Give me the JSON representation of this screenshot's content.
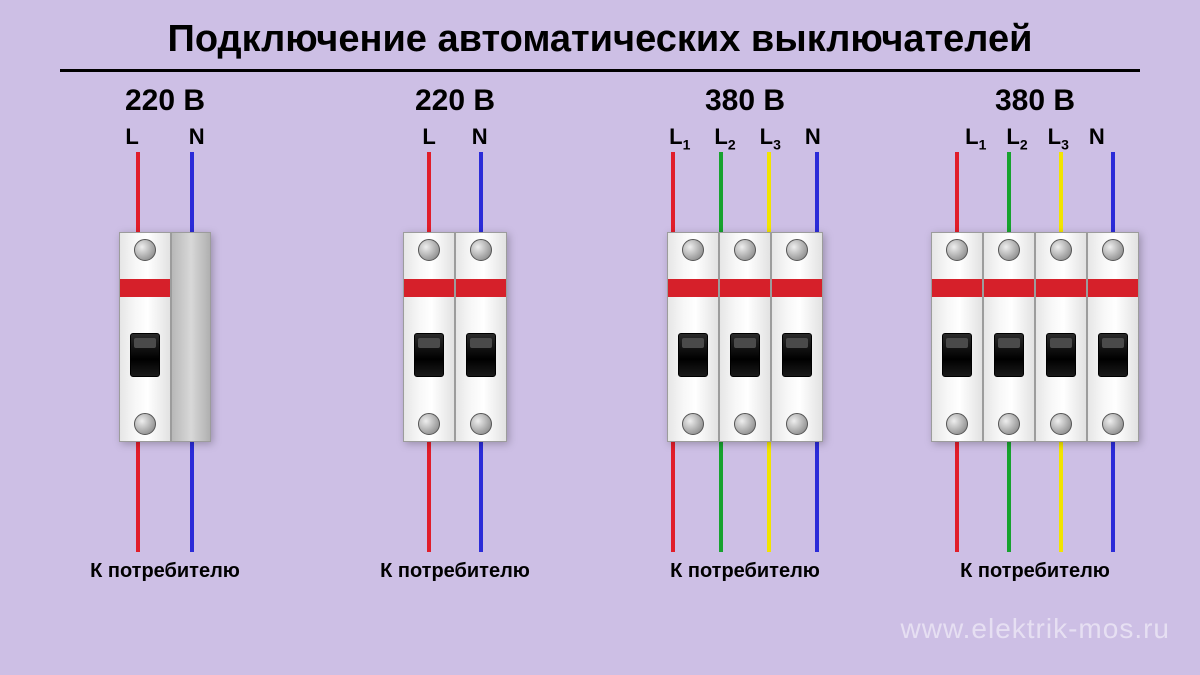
{
  "title": "Подключение автоматических выключателей",
  "watermark": "www.elektrik-mos.ru",
  "background_color": "#cdbfe5",
  "stripe_color": "#d6202a",
  "bottom_label": "К потребителю",
  "wire_colors": {
    "L": "#e11d2a",
    "L1": "#e11d2a",
    "L2": "#17a22e",
    "L3": "#f2e400",
    "N": "#2b2bd8"
  },
  "columns": [
    {
      "voltage": "220 В",
      "poles": 1,
      "has_din_side": true,
      "top_wires": [
        {
          "label": "L",
          "color": "#e11d2a"
        },
        {
          "label": "N",
          "color": "#2b2bd8"
        }
      ],
      "top_label_gap": 50,
      "top_wire_gap": 50,
      "bottom_wires": [
        {
          "color": "#e11d2a"
        },
        {
          "color": "#2b2bd8"
        }
      ],
      "bottom_wire_gap": 50
    },
    {
      "voltage": "220 В",
      "poles": 2,
      "has_din_side": false,
      "top_wires": [
        {
          "label": "L",
          "color": "#e11d2a"
        },
        {
          "label": "N",
          "color": "#2b2bd8"
        }
      ],
      "top_label_gap": 36,
      "top_wire_gap": 48,
      "bottom_wires": [
        {
          "color": "#e11d2a"
        },
        {
          "color": "#2b2bd8"
        }
      ],
      "bottom_wire_gap": 48
    },
    {
      "voltage": "380 В",
      "poles": 3,
      "has_din_side": false,
      "top_wires": [
        {
          "label": "L",
          "sub": "1",
          "color": "#e11d2a"
        },
        {
          "label": "L",
          "sub": "2",
          "color": "#17a22e"
        },
        {
          "label": "L",
          "sub": "3",
          "color": "#f2e400"
        },
        {
          "label": "N",
          "color": "#2b2bd8"
        }
      ],
      "top_label_gap": 24,
      "top_wire_gap": 44,
      "bottom_wires": [
        {
          "color": "#e11d2a"
        },
        {
          "color": "#17a22e"
        },
        {
          "color": "#f2e400"
        },
        {
          "color": "#2b2bd8"
        }
      ],
      "bottom_wire_gap": 44
    },
    {
      "voltage": "380 В",
      "poles": 4,
      "has_din_side": false,
      "top_wires": [
        {
          "label": "L",
          "sub": "1",
          "color": "#e11d2a"
        },
        {
          "label": "L",
          "sub": "2",
          "color": "#17a22e"
        },
        {
          "label": "L",
          "sub": "3",
          "color": "#f2e400"
        },
        {
          "label": "N",
          "color": "#2b2bd8"
        }
      ],
      "top_label_gap": 20,
      "top_wire_gap": 48,
      "bottom_wires": [
        {
          "color": "#e11d2a"
        },
        {
          "color": "#17a22e"
        },
        {
          "color": "#f2e400"
        },
        {
          "color": "#2b2bd8"
        }
      ],
      "bottom_wire_gap": 48
    }
  ]
}
